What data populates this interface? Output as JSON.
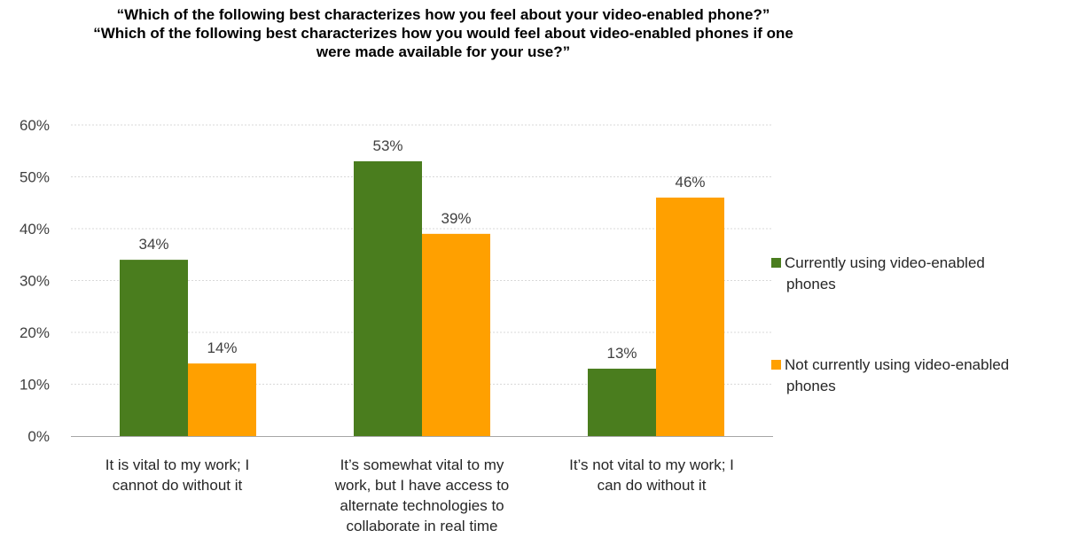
{
  "title_lines": [
    "“Which of the following best characterizes how you feel about your video-enabled phone?”",
    "“Which of the following best characterizes how you would feel about video-enabled phones if one",
    "were made available for your use?”"
  ],
  "chart_data": {
    "type": "bar",
    "categories": [
      "It is vital to my work; I cannot do without it",
      "It’s somewhat vital to my work, but I have access to alternate technologies to collaborate in real time",
      "It’s not vital to my work; I can do without it"
    ],
    "series": [
      {
        "name": "Currently using video-enabled phones",
        "values": [
          34,
          53,
          13
        ],
        "labels": [
          "34%",
          "53%",
          "13%"
        ],
        "color": "#4a7d1e"
      },
      {
        "name": "Not currently using video-enabled phones",
        "values": [
          14,
          39,
          46
        ],
        "labels": [
          "14%",
          "39%",
          "46%"
        ],
        "color": "#ffa000"
      }
    ],
    "yticks": [
      "0%",
      "10%",
      "20%",
      "30%",
      "40%",
      "50%",
      "60%"
    ],
    "ylim": [
      0,
      60
    ],
    "grid": true,
    "legend_position": "right"
  },
  "category_label_lines": [
    [
      "It is vital to my work; I",
      "cannot do without it"
    ],
    [
      "It’s somewhat vital to my",
      "work, but I have access to",
      "alternate technologies to",
      "collaborate in real time"
    ],
    [
      "It’s not vital to my work; I",
      "can do without it"
    ]
  ],
  "legend": {
    "items": [
      {
        "line1": "Currently using video-enabled",
        "line2": "phones",
        "color": "#4a7d1e"
      },
      {
        "line1": "Not currently using video-enabled",
        "line2": "phones",
        "color": "#ffa000"
      }
    ]
  }
}
